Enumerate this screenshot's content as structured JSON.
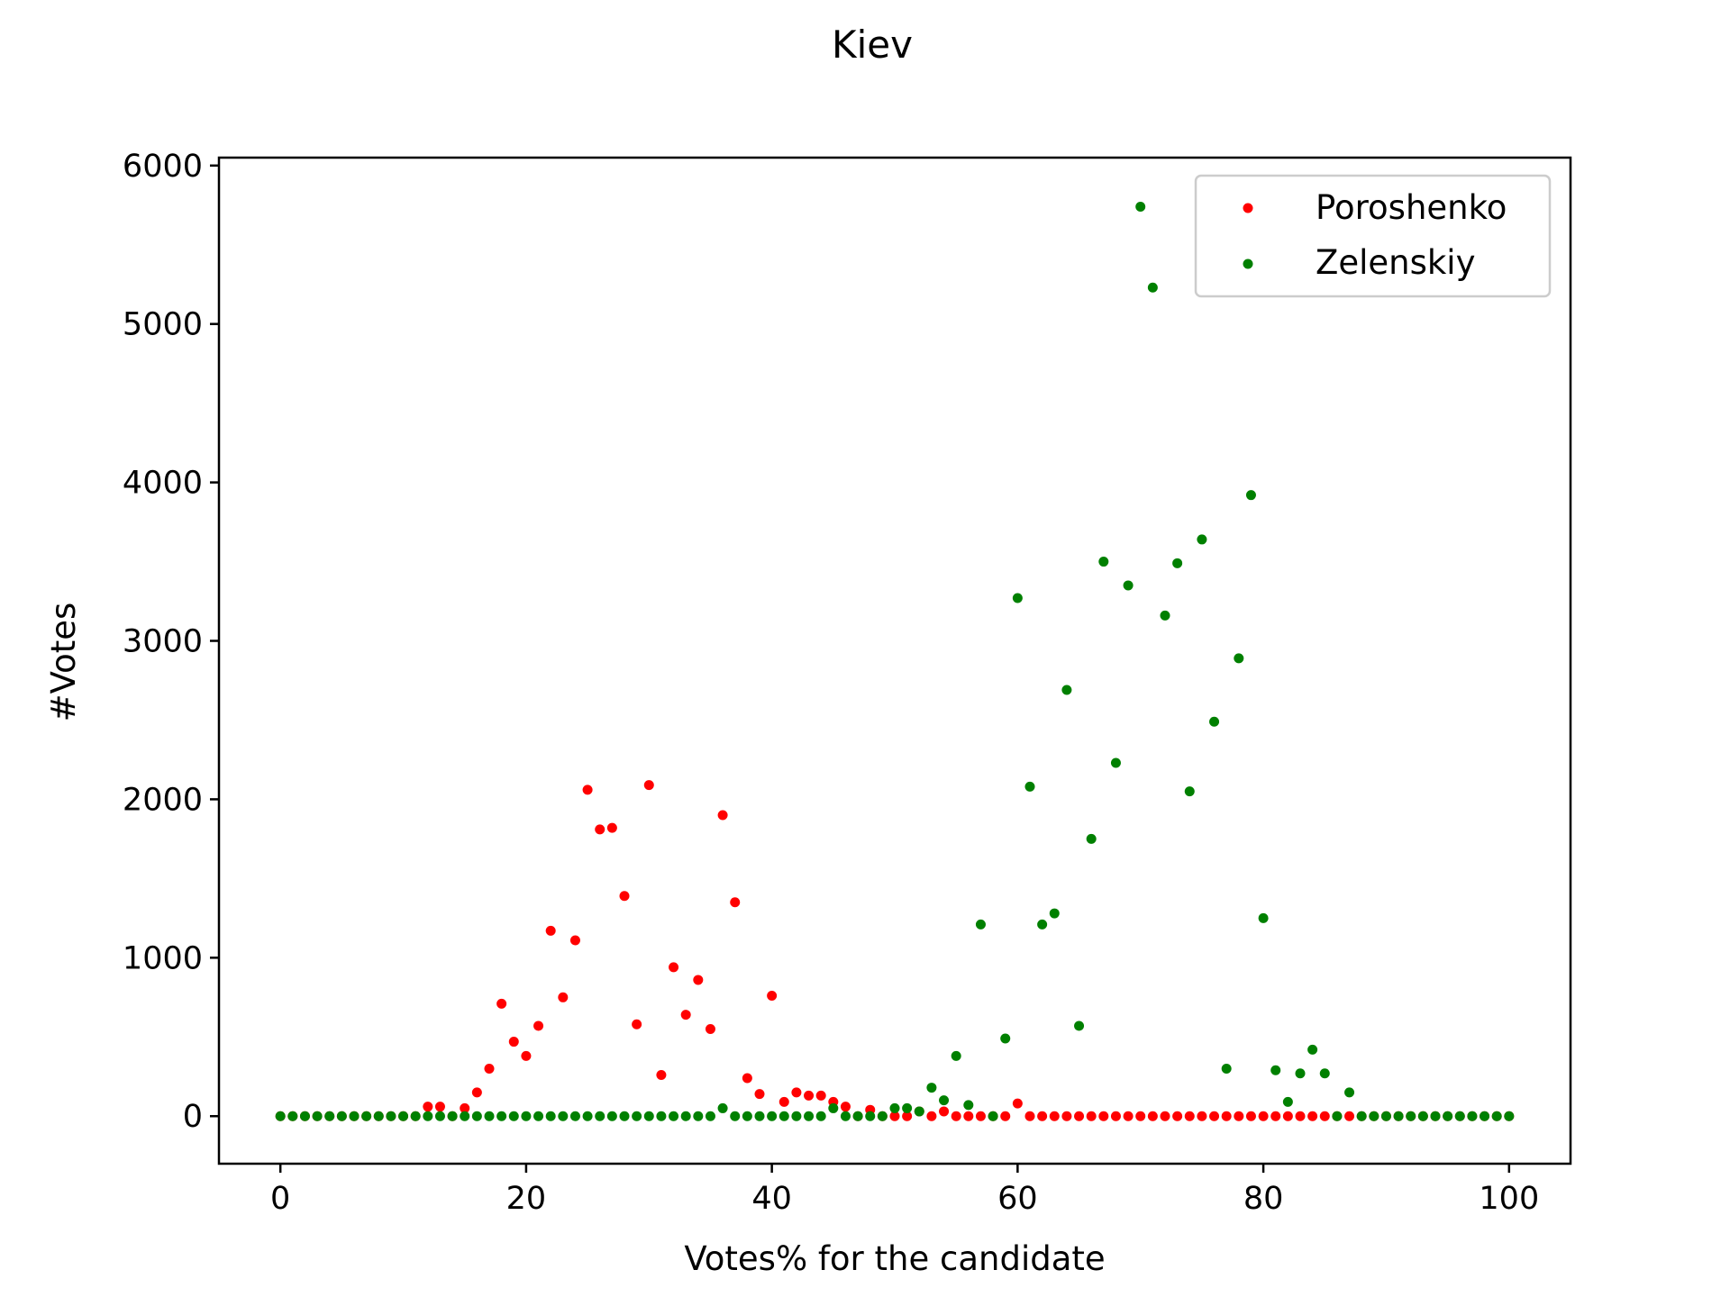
{
  "chart_data": {
    "type": "scatter",
    "title": "Kiev",
    "xlabel": "Votes% for the candidate",
    "ylabel": "#Votes",
    "xlim": [
      -5,
      105
    ],
    "ylim": [
      -300,
      6050
    ],
    "xticks": [
      0,
      20,
      40,
      60,
      80,
      100
    ],
    "yticks": [
      0,
      1000,
      2000,
      3000,
      4000,
      5000,
      6000
    ],
    "grid": false,
    "legend_position": "top-right",
    "series": [
      {
        "name": "Poroshenko",
        "color": "#ff0000",
        "points": [
          [
            0,
            0
          ],
          [
            1,
            0
          ],
          [
            2,
            0
          ],
          [
            3,
            0
          ],
          [
            4,
            0
          ],
          [
            5,
            0
          ],
          [
            6,
            0
          ],
          [
            7,
            0
          ],
          [
            8,
            0
          ],
          [
            9,
            0
          ],
          [
            10,
            0
          ],
          [
            11,
            0
          ],
          [
            12,
            60
          ],
          [
            13,
            60
          ],
          [
            14,
            0
          ],
          [
            15,
            50
          ],
          [
            16,
            150
          ],
          [
            17,
            300
          ],
          [
            18,
            710
          ],
          [
            19,
            470
          ],
          [
            20,
            380
          ],
          [
            21,
            570
          ],
          [
            22,
            1170
          ],
          [
            23,
            750
          ],
          [
            24,
            1110
          ],
          [
            25,
            2060
          ],
          [
            26,
            1810
          ],
          [
            27,
            1820
          ],
          [
            28,
            1390
          ],
          [
            29,
            580
          ],
          [
            30,
            2090
          ],
          [
            31,
            260
          ],
          [
            32,
            940
          ],
          [
            33,
            640
          ],
          [
            34,
            860
          ],
          [
            35,
            550
          ],
          [
            36,
            1900
          ],
          [
            37,
            1350
          ],
          [
            38,
            240
          ],
          [
            39,
            140
          ],
          [
            40,
            760
          ],
          [
            41,
            90
          ],
          [
            42,
            150
          ],
          [
            43,
            130
          ],
          [
            44,
            130
          ],
          [
            45,
            90
          ],
          [
            46,
            60
          ],
          [
            47,
            0
          ],
          [
            48,
            40
          ],
          [
            49,
            0
          ],
          [
            50,
            0
          ],
          [
            51,
            0
          ],
          [
            52,
            30
          ],
          [
            53,
            0
          ],
          [
            54,
            30
          ],
          [
            55,
            0
          ],
          [
            56,
            0
          ],
          [
            57,
            0
          ],
          [
            58,
            0
          ],
          [
            59,
            0
          ],
          [
            60,
            80
          ],
          [
            61,
            0
          ],
          [
            62,
            0
          ],
          [
            63,
            0
          ],
          [
            64,
            0
          ],
          [
            65,
            0
          ],
          [
            66,
            0
          ],
          [
            67,
            0
          ],
          [
            68,
            0
          ],
          [
            69,
            0
          ],
          [
            70,
            0
          ],
          [
            71,
            0
          ],
          [
            72,
            0
          ],
          [
            73,
            0
          ],
          [
            74,
            0
          ],
          [
            75,
            0
          ],
          [
            76,
            0
          ],
          [
            77,
            0
          ],
          [
            78,
            0
          ],
          [
            79,
            0
          ],
          [
            80,
            0
          ],
          [
            81,
            0
          ],
          [
            82,
            0
          ],
          [
            83,
            0
          ],
          [
            84,
            0
          ],
          [
            85,
            0
          ],
          [
            86,
            0
          ],
          [
            87,
            0
          ],
          [
            88,
            0
          ],
          [
            89,
            0
          ],
          [
            90,
            0
          ],
          [
            91,
            0
          ],
          [
            92,
            0
          ],
          [
            93,
            0
          ],
          [
            94,
            0
          ],
          [
            95,
            0
          ],
          [
            96,
            0
          ],
          [
            97,
            0
          ],
          [
            98,
            0
          ],
          [
            99,
            0
          ],
          [
            100,
            0
          ]
        ]
      },
      {
        "name": "Zelenskiy",
        "color": "#008000",
        "points": [
          [
            0,
            0
          ],
          [
            1,
            0
          ],
          [
            2,
            0
          ],
          [
            3,
            0
          ],
          [
            4,
            0
          ],
          [
            5,
            0
          ],
          [
            6,
            0
          ],
          [
            7,
            0
          ],
          [
            8,
            0
          ],
          [
            9,
            0
          ],
          [
            10,
            0
          ],
          [
            11,
            0
          ],
          [
            12,
            0
          ],
          [
            13,
            0
          ],
          [
            14,
            0
          ],
          [
            15,
            0
          ],
          [
            16,
            0
          ],
          [
            17,
            0
          ],
          [
            18,
            0
          ],
          [
            19,
            0
          ],
          [
            20,
            0
          ],
          [
            21,
            0
          ],
          [
            22,
            0
          ],
          [
            23,
            0
          ],
          [
            24,
            0
          ],
          [
            25,
            0
          ],
          [
            26,
            0
          ],
          [
            27,
            0
          ],
          [
            28,
            0
          ],
          [
            29,
            0
          ],
          [
            30,
            0
          ],
          [
            31,
            0
          ],
          [
            32,
            0
          ],
          [
            33,
            0
          ],
          [
            34,
            0
          ],
          [
            35,
            0
          ],
          [
            36,
            50
          ],
          [
            37,
            0
          ],
          [
            38,
            0
          ],
          [
            39,
            0
          ],
          [
            40,
            0
          ],
          [
            41,
            0
          ],
          [
            42,
            0
          ],
          [
            43,
            0
          ],
          [
            44,
            0
          ],
          [
            45,
            50
          ],
          [
            46,
            0
          ],
          [
            47,
            0
          ],
          [
            48,
            0
          ],
          [
            49,
            0
          ],
          [
            50,
            50
          ],
          [
            51,
            50
          ],
          [
            52,
            30
          ],
          [
            53,
            180
          ],
          [
            54,
            100
          ],
          [
            55,
            380
          ],
          [
            56,
            70
          ],
          [
            57,
            1210
          ],
          [
            58,
            0
          ],
          [
            59,
            490
          ],
          [
            60,
            3270
          ],
          [
            61,
            2080
          ],
          [
            62,
            1210
          ],
          [
            63,
            1280
          ],
          [
            64,
            2690
          ],
          [
            65,
            570
          ],
          [
            66,
            1750
          ],
          [
            67,
            3500
          ],
          [
            68,
            2230
          ],
          [
            69,
            3350
          ],
          [
            70,
            5740
          ],
          [
            71,
            5230
          ],
          [
            72,
            3160
          ],
          [
            73,
            3490
          ],
          [
            74,
            2050
          ],
          [
            75,
            3640
          ],
          [
            76,
            2490
          ],
          [
            77,
            300
          ],
          [
            78,
            2890
          ],
          [
            79,
            3920
          ],
          [
            80,
            1250
          ],
          [
            81,
            290
          ],
          [
            82,
            90
          ],
          [
            83,
            270
          ],
          [
            84,
            420
          ],
          [
            85,
            270
          ],
          [
            86,
            0
          ],
          [
            87,
            150
          ],
          [
            88,
            0
          ],
          [
            89,
            0
          ],
          [
            90,
            0
          ],
          [
            91,
            0
          ],
          [
            92,
            0
          ],
          [
            93,
            0
          ],
          [
            94,
            0
          ],
          [
            95,
            0
          ],
          [
            96,
            0
          ],
          [
            97,
            0
          ],
          [
            98,
            0
          ],
          [
            99,
            0
          ],
          [
            100,
            0
          ]
        ]
      }
    ]
  }
}
